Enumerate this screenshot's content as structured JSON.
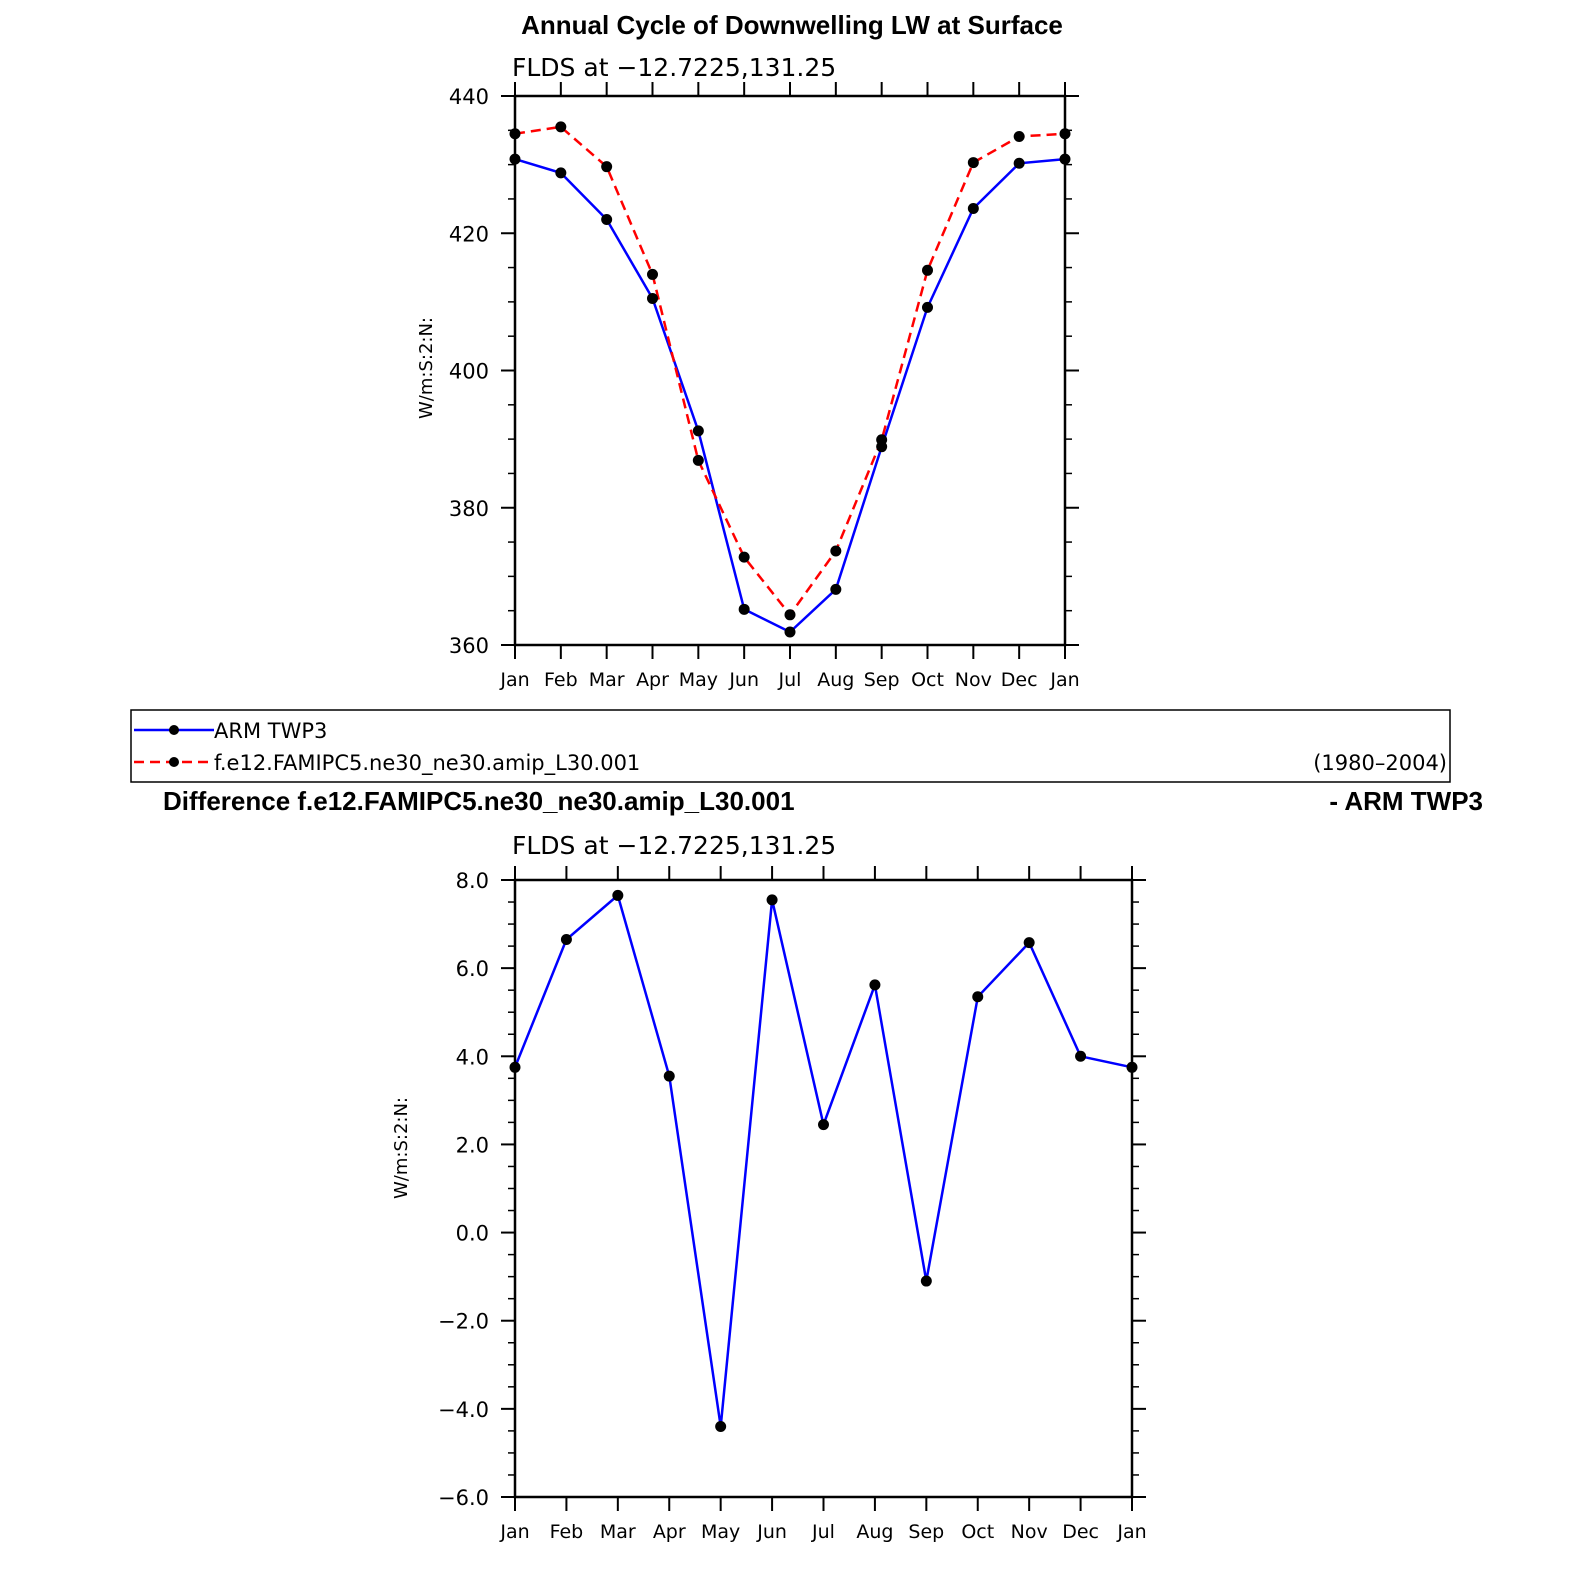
{
  "chart_data": [
    {
      "type": "line",
      "title": "Annual Cycle of Downwelling LW at Surface",
      "subtitle": "FLDS at −12.7225,131.25",
      "ylabel": "W/m:S:2:N:",
      "xlabel": "",
      "categories": [
        "Jan",
        "Feb",
        "Mar",
        "Apr",
        "May",
        "Jun",
        "Jul",
        "Aug",
        "Sep",
        "Oct",
        "Nov",
        "Dec",
        "Jan"
      ],
      "ylim": [
        360,
        440
      ],
      "yticks": [
        360,
        380,
        400,
        420,
        440
      ],
      "series": [
        {
          "name": "ARM TWP3",
          "color": "#0000ff",
          "dash": "solid",
          "values": [
            430.8,
            428.8,
            422.0,
            410.5,
            391.2,
            365.2,
            361.9,
            368.1,
            388.9,
            409.2,
            423.6,
            430.2,
            430.8
          ]
        },
        {
          "name": "f.e12.FAMIPC5.ne30_ne30.amip_L30.001",
          "color": "#ff0000",
          "dash": "dashed",
          "values": [
            434.5,
            435.5,
            429.7,
            414.0,
            386.9,
            372.8,
            364.4,
            373.7,
            389.9,
            414.6,
            430.3,
            434.1,
            434.5
          ]
        }
      ],
      "legend": {
        "placement": "bottom",
        "entries": [
          "ARM TWP3",
          "f.e12.FAMIPC5.ne30_ne30.amip_L30.001"
        ],
        "period": "(1980–2004)"
      }
    },
    {
      "type": "line",
      "title_left": "Difference f.e12.FAMIPC5.ne30_ne30.amip_L30.001",
      "title_right": "- ARM TWP3",
      "subtitle": "FLDS at −12.7225,131.25",
      "ylabel": "W/m:S:2:N:",
      "xlabel": "",
      "categories": [
        "Jan",
        "Feb",
        "Mar",
        "Apr",
        "May",
        "Jun",
        "Jul",
        "Aug",
        "Sep",
        "Oct",
        "Nov",
        "Dec",
        "Jan"
      ],
      "ylim": [
        -6.0,
        8.0
      ],
      "yticks": [
        -6.0,
        -4.0,
        -2.0,
        0.0,
        2.0,
        4.0,
        6.0,
        8.0
      ],
      "ytick_labels": [
        "−6.0",
        "−4.0",
        "−2.0",
        "0.0",
        "2.0",
        "4.0",
        "6.0",
        "8.0"
      ],
      "series": [
        {
          "color": "#0000ff",
          "dash": "solid",
          "values": [
            3.75,
            6.65,
            7.65,
            3.55,
            -4.4,
            7.55,
            2.45,
            5.62,
            -1.1,
            5.35,
            6.58,
            4.0,
            3.75
          ]
        }
      ]
    }
  ]
}
